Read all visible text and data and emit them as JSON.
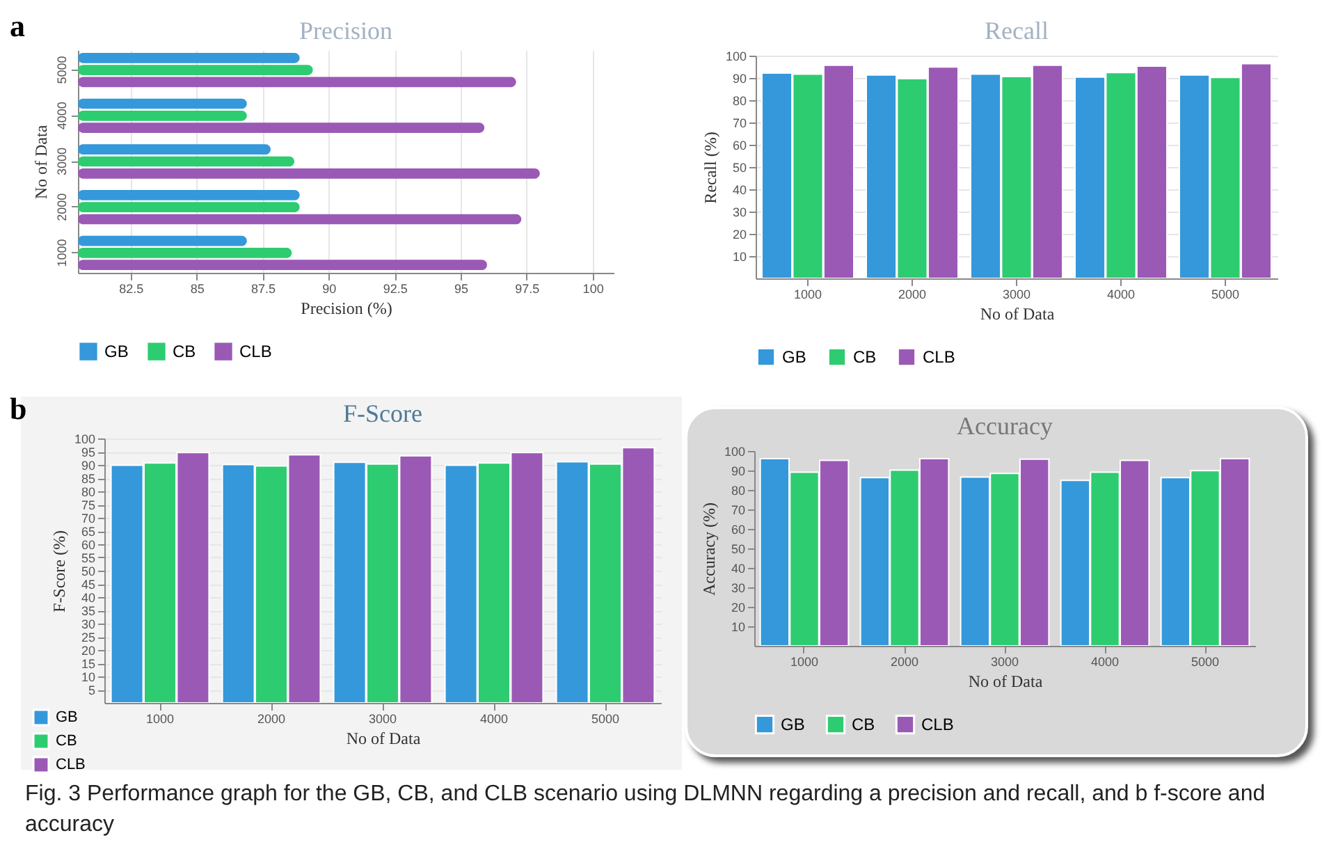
{
  "chart_data": [
    {
      "type": "bar",
      "orientation": "horizontal",
      "title": "Precision",
      "xlabel": "Precision (%)",
      "ylabel": "No of Data",
      "categories": [
        "5000",
        "4000",
        "3000",
        "2000",
        "1000"
      ],
      "series": [
        {
          "name": "GB",
          "color": "#3498db",
          "values": [
            88.9,
            86.9,
            87.8,
            88.9,
            86.9
          ]
        },
        {
          "name": "CB",
          "color": "#2ecc71",
          "values": [
            89.4,
            86.9,
            88.7,
            88.9,
            88.6
          ]
        },
        {
          "name": "CLB",
          "color": "#9b59b6",
          "values": [
            97.1,
            95.9,
            98.0,
            97.3,
            96.0
          ]
        }
      ],
      "xlim": [
        80.5,
        100.8
      ],
      "xticks": [
        82.5,
        85,
        87.5,
        90,
        92.5,
        95,
        97.5,
        100
      ],
      "grid": "x",
      "legend": "bottom",
      "annotations": [
        "a",
        "Fig. 3  Performance graph for the GB, CB, and CLB scenario using DLMNN regarding a precision and recall, and b f-score and accuracy"
      ]
    },
    {
      "type": "bar",
      "title": "Recall",
      "xlabel": "No of Data",
      "ylabel": "Recall (%)",
      "categories": [
        "1000",
        "2000",
        "3000",
        "4000",
        "5000"
      ],
      "series": [
        {
          "name": "GB",
          "color": "#3498db",
          "values": [
            92.2,
            91.3,
            91.7,
            90.4,
            91.3
          ]
        },
        {
          "name": "CB",
          "color": "#2ecc71",
          "values": [
            91.7,
            89.7,
            90.6,
            92.4,
            90.2
          ]
        },
        {
          "name": "CLB",
          "color": "#9b59b6",
          "values": [
            95.7,
            94.9,
            95.7,
            95.3,
            96.4
          ]
        }
      ],
      "ylim": [
        0,
        100
      ],
      "yticks": [
        10,
        20,
        30,
        40,
        50,
        60,
        70,
        80,
        90,
        100
      ],
      "grid": "y",
      "legend": "bottom"
    },
    {
      "type": "bar",
      "title": "F-Score",
      "xlabel": "No of Data",
      "ylabel": "F-Score (%)",
      "categories": [
        "1000",
        "2000",
        "3000",
        "4000",
        "5000"
      ],
      "series": [
        {
          "name": "GB",
          "color": "#3498db",
          "values": [
            89.9,
            90.1,
            91.0,
            89.9,
            91.2
          ]
        },
        {
          "name": "CB",
          "color": "#2ecc71",
          "values": [
            90.7,
            89.6,
            90.3,
            90.7,
            90.3
          ]
        },
        {
          "name": "CLB",
          "color": "#9b59b6",
          "values": [
            94.7,
            93.8,
            93.4,
            94.7,
            96.5
          ]
        }
      ],
      "ylim": [
        0,
        100
      ],
      "yticks": [
        5,
        10,
        15,
        20,
        25,
        30,
        35,
        40,
        45,
        50,
        55,
        60,
        65,
        70,
        75,
        80,
        85,
        90,
        95,
        100
      ],
      "grid": "y",
      "legend": "bottom left",
      "annotations": [
        "b"
      ]
    },
    {
      "type": "bar",
      "title": "Accuracy",
      "xlabel": "No of Data",
      "ylabel": "Accuracy (%)",
      "categories": [
        "1000",
        "2000",
        "3000",
        "4000",
        "5000"
      ],
      "series": [
        {
          "name": "GB",
          "color": "#3498db",
          "values": [
            96.1,
            86.3,
            86.6,
            84.9,
            86.3
          ]
        },
        {
          "name": "CB",
          "color": "#2ecc71",
          "values": [
            89.1,
            90.2,
            88.5,
            89.1,
            89.9
          ]
        },
        {
          "name": "CLB",
          "color": "#9b59b6",
          "values": [
            95.2,
            96.1,
            95.8,
            95.2,
            96.1
          ]
        }
      ],
      "ylim": [
        0,
        100
      ],
      "yticks": [
        10,
        20,
        30,
        40,
        50,
        60,
        70,
        80,
        90,
        100
      ],
      "legend": "bottom"
    }
  ]
}
